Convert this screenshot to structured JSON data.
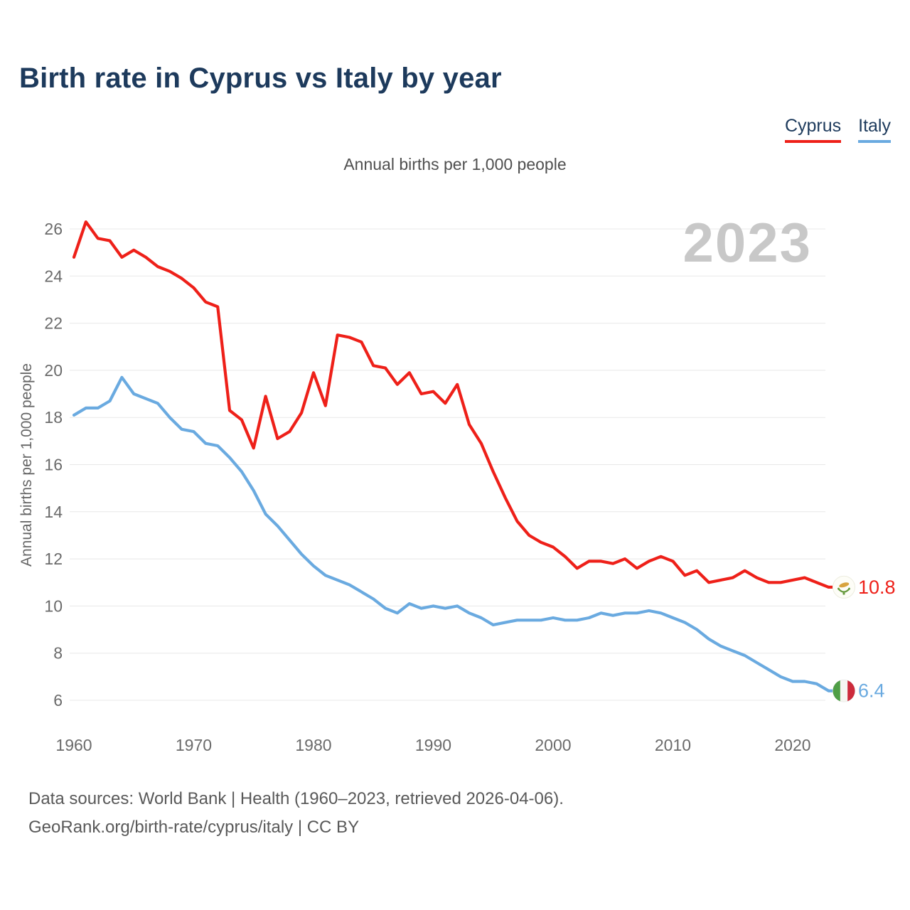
{
  "page": {
    "title": "Birth rate in Cyprus vs Italy by year"
  },
  "legend": {
    "items": [
      {
        "label": "Cyprus",
        "color": "#ee2019"
      },
      {
        "label": "Italy",
        "color": "#6aaae0"
      }
    ]
  },
  "chart_data": {
    "type": "line",
    "title": "Annual births per 1,000 people",
    "ylabel": "Annual births per 1,000 people",
    "xlabel": "",
    "watermark": "2023",
    "grid": "horizontal",
    "legend_position": "top-right",
    "xlim": [
      1960,
      2023
    ],
    "ylim": [
      6,
      26
    ],
    "x_ticks": [
      1960,
      1970,
      1980,
      1990,
      2000,
      2010,
      2020
    ],
    "y_ticks": [
      6,
      8,
      10,
      12,
      14,
      16,
      18,
      20,
      22,
      24,
      26
    ],
    "x": [
      1960,
      1961,
      1962,
      1963,
      1964,
      1965,
      1966,
      1967,
      1968,
      1969,
      1970,
      1971,
      1972,
      1973,
      1974,
      1975,
      1976,
      1977,
      1978,
      1979,
      1980,
      1981,
      1982,
      1983,
      1984,
      1985,
      1986,
      1987,
      1988,
      1989,
      1990,
      1991,
      1992,
      1993,
      1994,
      1995,
      1996,
      1997,
      1998,
      1999,
      2000,
      2001,
      2002,
      2003,
      2004,
      2005,
      2006,
      2007,
      2008,
      2009,
      2010,
      2011,
      2012,
      2013,
      2014,
      2015,
      2016,
      2017,
      2018,
      2019,
      2020,
      2021,
      2022,
      2023
    ],
    "series": [
      {
        "name": "Cyprus",
        "color": "#ee2019",
        "flag": "cyprus",
        "end_label": "10.8",
        "values": [
          24.8,
          26.3,
          25.6,
          25.5,
          24.8,
          25.1,
          24.8,
          24.4,
          24.2,
          23.9,
          23.5,
          22.9,
          22.7,
          18.3,
          17.9,
          16.7,
          18.9,
          17.1,
          17.4,
          18.2,
          19.9,
          18.5,
          21.5,
          21.4,
          21.2,
          20.2,
          20.1,
          19.4,
          19.9,
          19.0,
          19.1,
          18.6,
          19.4,
          17.7,
          16.9,
          15.7,
          14.6,
          13.6,
          13.0,
          12.7,
          12.5,
          12.1,
          11.6,
          11.9,
          11.9,
          11.8,
          12.0,
          11.6,
          11.9,
          12.1,
          11.9,
          11.3,
          11.5,
          11.0,
          11.1,
          11.2,
          11.5,
          11.2,
          11.0,
          11.0,
          11.1,
          11.2,
          11.0,
          10.8
        ]
      },
      {
        "name": "Italy",
        "color": "#6aaae0",
        "flag": "italy",
        "end_label": "6.4",
        "values": [
          18.1,
          18.4,
          18.4,
          18.7,
          19.7,
          19.0,
          18.8,
          18.6,
          18.0,
          17.5,
          17.4,
          16.9,
          16.8,
          16.3,
          15.7,
          14.9,
          13.9,
          13.4,
          12.8,
          12.2,
          11.7,
          11.3,
          11.1,
          10.9,
          10.6,
          10.3,
          9.9,
          9.7,
          10.1,
          9.9,
          10.0,
          9.9,
          10.0,
          9.7,
          9.5,
          9.2,
          9.3,
          9.4,
          9.4,
          9.4,
          9.5,
          9.4,
          9.4,
          9.5,
          9.7,
          9.6,
          9.7,
          9.7,
          9.8,
          9.7,
          9.5,
          9.3,
          9.0,
          8.6,
          8.3,
          8.1,
          7.9,
          7.6,
          7.3,
          7.0,
          6.8,
          6.8,
          6.7,
          6.4
        ]
      }
    ]
  },
  "footer": {
    "line1": "Data sources: World Bank | Health (1960–2023, retrieved 2026-04-06).",
    "line2": "GeoRank.org/birth-rate/cyprus/italy | CC BY"
  }
}
